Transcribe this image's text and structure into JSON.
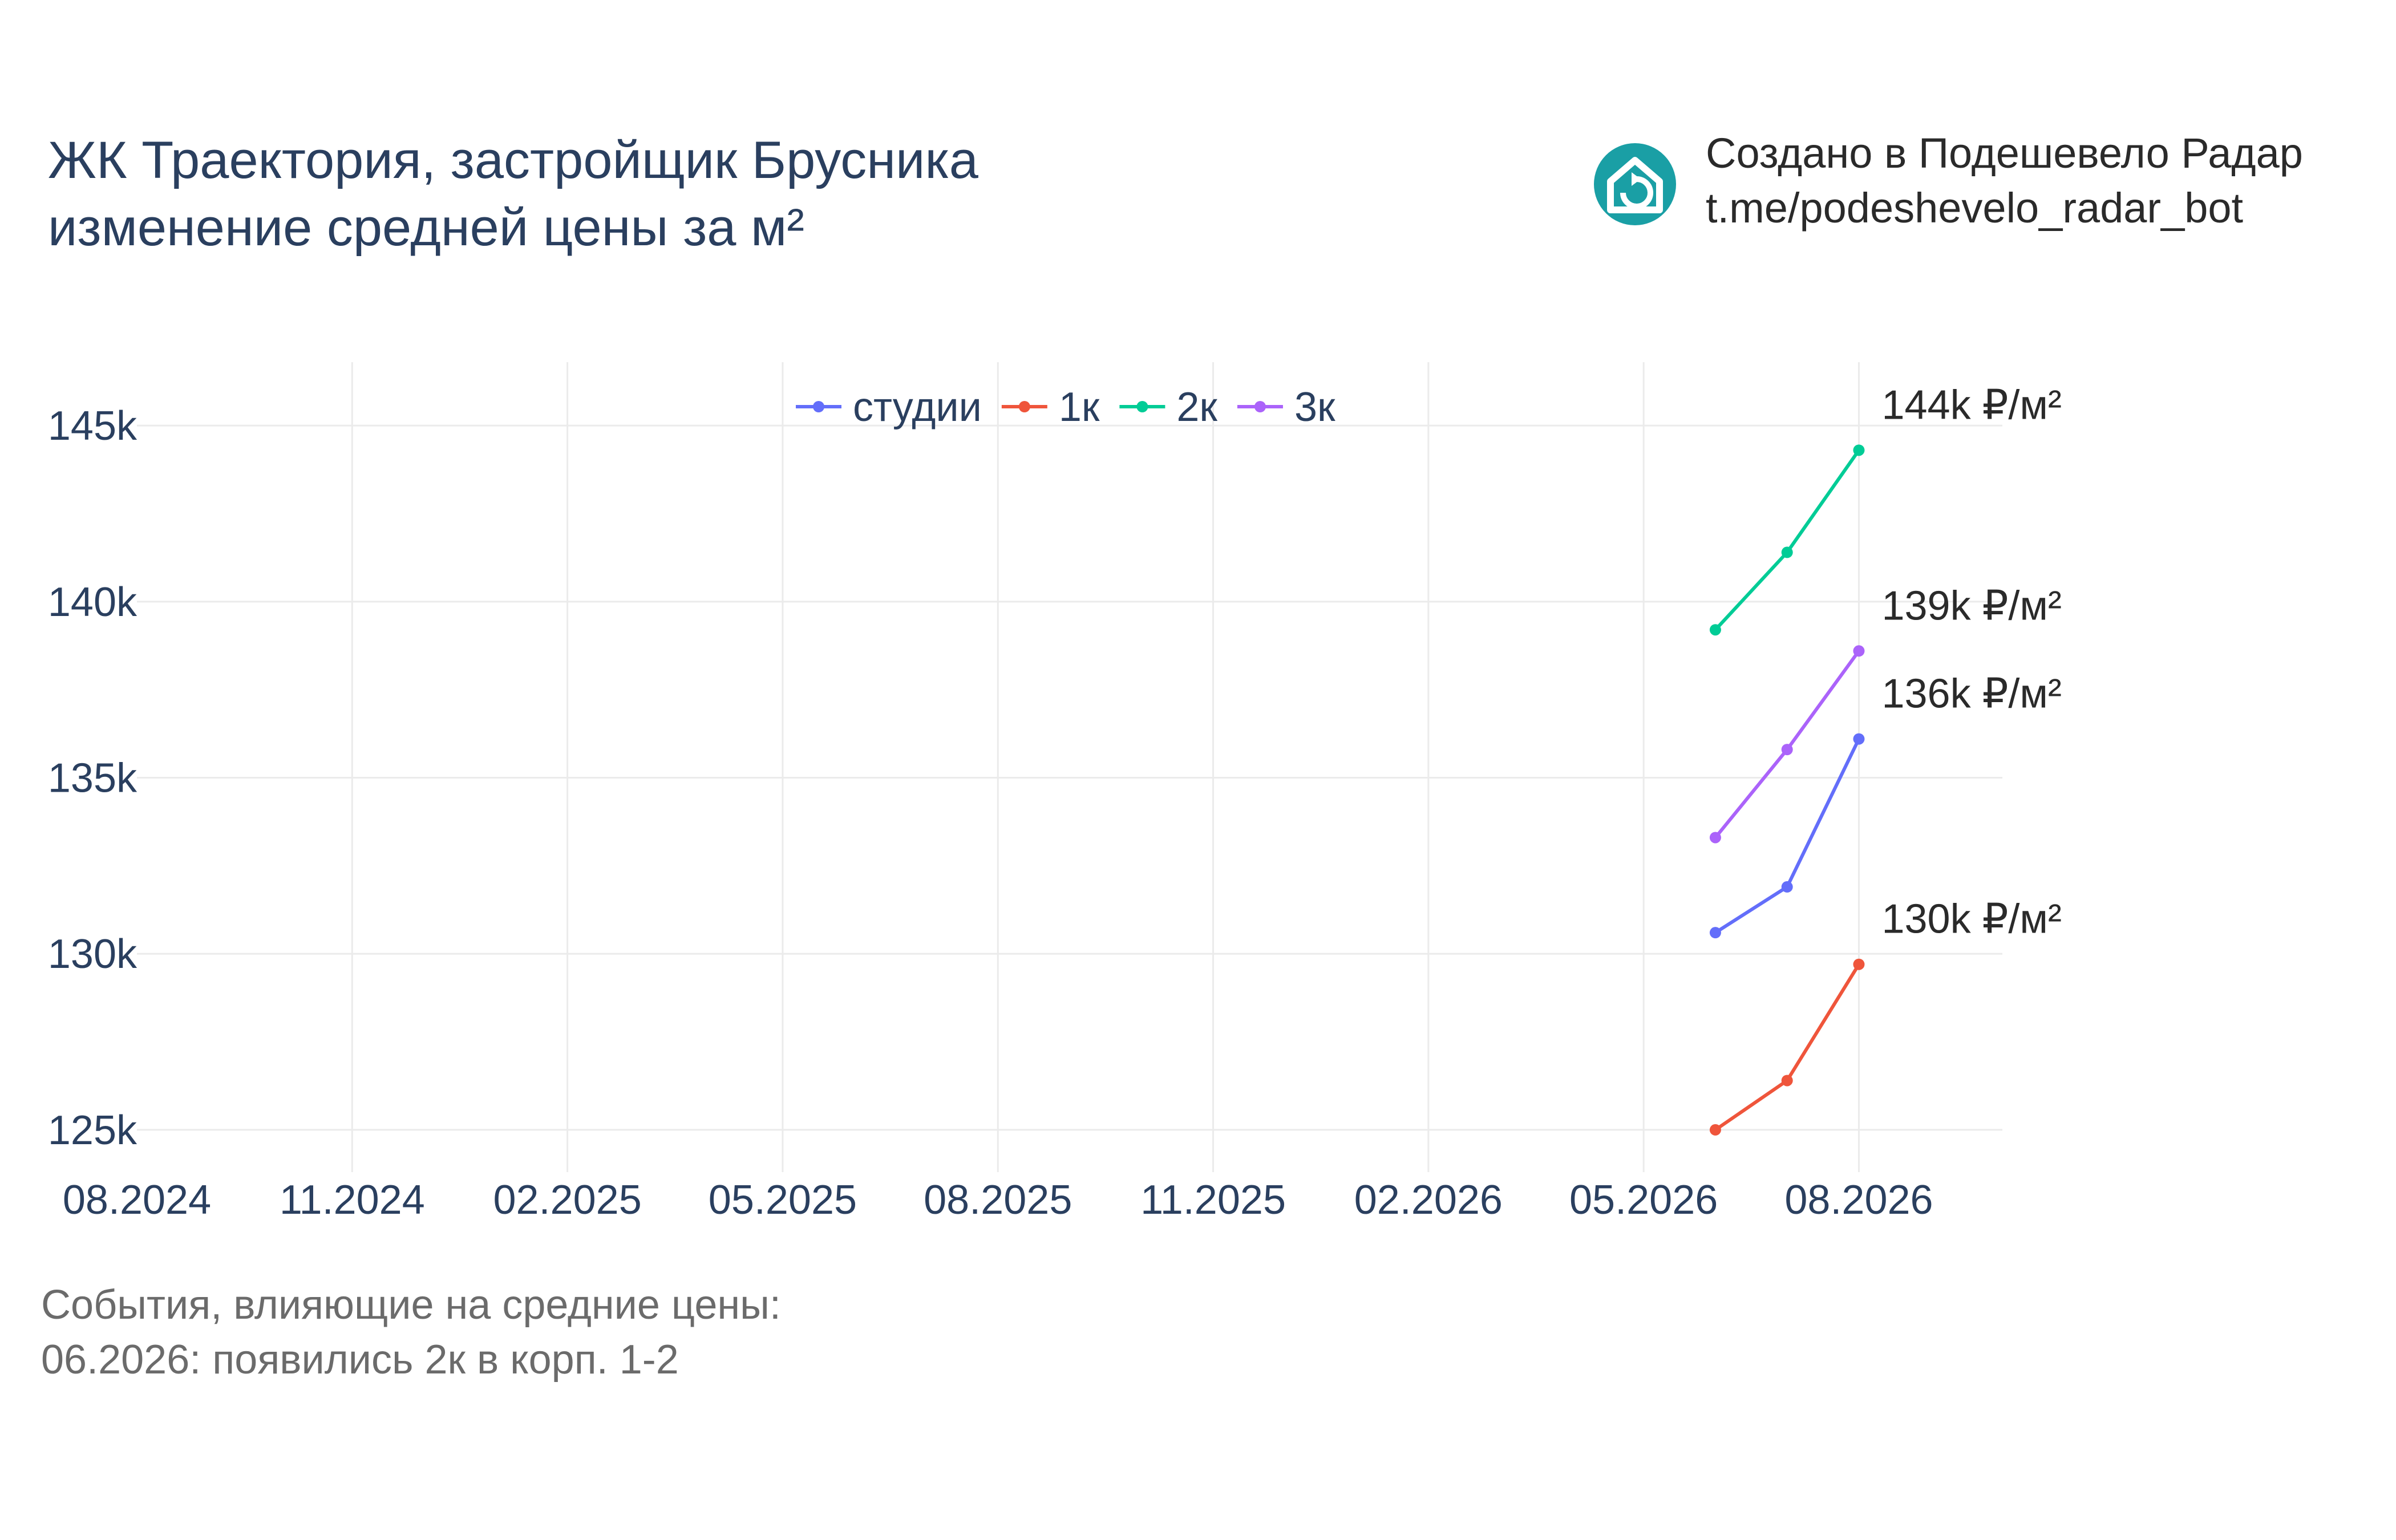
{
  "title": {
    "line1": "ЖК Траектория, застройщик Брусника",
    "line2": "изменение средней цены за м²"
  },
  "credit": {
    "line1": "Создано в Подешевело Радар",
    "line2": "t.me/podeshevelo_radar_bot",
    "logo_icon": "house-refresh-icon",
    "logo_color": "#1a9fa5"
  },
  "events": {
    "heading": "События, влияющие на средние цены:",
    "items": [
      "06.2026: появились 2к в корп. 1-2"
    ]
  },
  "chart_data": {
    "type": "line",
    "x": [
      "2026-06",
      "2026-07",
      "2026-08"
    ],
    "x_ticks": [
      "08.2024",
      "11.2024",
      "02.2025",
      "05.2025",
      "08.2025",
      "11.2025",
      "02.2026",
      "05.2026",
      "08.2026"
    ],
    "xlim": [
      "2024-08",
      "2026-10"
    ],
    "y_ticks": [
      "125k",
      "130k",
      "135k",
      "140k",
      "145k"
    ],
    "y_tick_values": [
      125000,
      130000,
      135000,
      140000,
      145000
    ],
    "ylim": [
      123800,
      146800
    ],
    "grid": true,
    "legend_placement": "top-center",
    "series": [
      {
        "name": "студии",
        "color": "#636efa",
        "values": [
          130600,
          131900,
          136100
        ],
        "end_label": "136k ₽/м²"
      },
      {
        "name": "1к",
        "color": "#ef553b",
        "values": [
          125000,
          126400,
          129700
        ],
        "end_label": "130k ₽/м²"
      },
      {
        "name": "2к",
        "color": "#00cc96",
        "values": [
          139200,
          141400,
          144300
        ],
        "end_label": "144k ₽/м²"
      },
      {
        "name": "3к",
        "color": "#ab63fa",
        "values": [
          133300,
          135800,
          138600
        ],
        "end_label": "139k ₽/м²"
      }
    ]
  }
}
